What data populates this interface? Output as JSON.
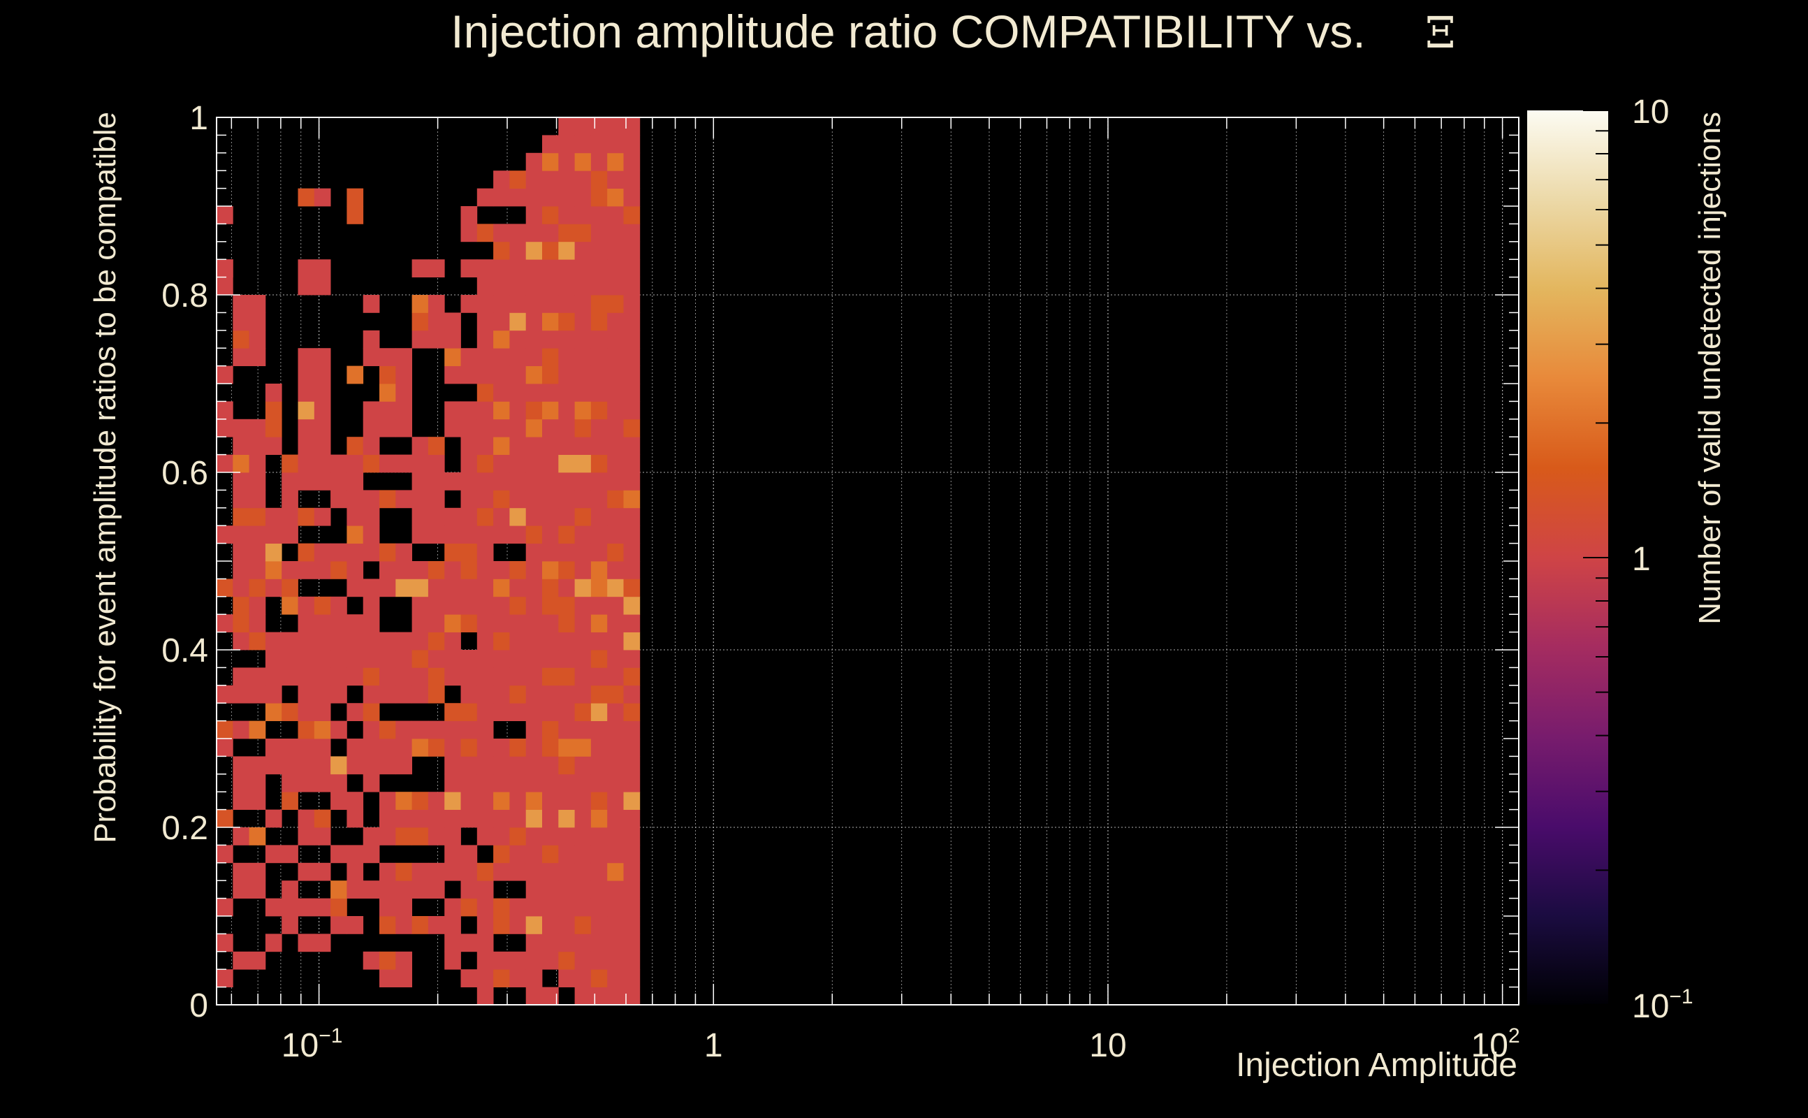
{
  "chart_data": {
    "type": "heatmap",
    "title": "Injection amplitude ratio COMPATIBILITY vs.",
    "title_symbol": "Ξ",
    "xlabel": "Injection Amplitude",
    "ylabel": "Probability for event amplitude ratios to be compatible",
    "zlabel": "Number of valid undetected injections",
    "x_scale": "log",
    "xlim": [
      0.055,
      110
    ],
    "ylim": [
      0,
      1
    ],
    "zlim": [
      0.1,
      10
    ],
    "z_scale": "log",
    "x_bins": 80,
    "y_bins": 50,
    "x_ticks": [
      {
        "value": 0.1,
        "base": "10",
        "exp": "−1"
      },
      {
        "value": 1,
        "base": "1",
        "exp": ""
      },
      {
        "value": 10,
        "base": "10",
        "exp": ""
      },
      {
        "value": 100,
        "base": "10",
        "exp": "2"
      }
    ],
    "y_ticks": [
      "0",
      "0.2",
      "0.4",
      "0.6",
      "0.8",
      "1"
    ],
    "colorbar_ticks": [
      {
        "value": 10,
        "base": "10",
        "exp": ""
      },
      {
        "value": 1,
        "base": "1",
        "exp": ""
      },
      {
        "value": 0.1,
        "base": "10",
        "exp": "−1"
      }
    ],
    "colormap": [
      "#000004",
      "#1b0c41",
      "#4a0c6b",
      "#781c6d",
      "#a52c60",
      "#cf4446",
      "#d85a1a",
      "#e8893a",
      "#e3b65e",
      "#ecd9a8",
      "#fcfbf2"
    ],
    "counts_by_x_bin": {
      "0": [
        1,
        3,
        5,
        8,
        10,
        14,
        15,
        17,
        21,
        23,
        26,
        30,
        32,
        33,
        35,
        40,
        41,
        44,
        41
      ],
      "1": [
        2,
        6,
        7,
        9,
        11,
        12,
        13,
        15,
        17,
        18,
        20,
        21,
        22,
        23,
        24,
        25,
        26,
        27,
        28,
        29,
        30,
        31,
        32,
        36,
        37,
        38,
        39
      ],
      "2": [
        2,
        6,
        7,
        9,
        11,
        12,
        13,
        15,
        17,
        18,
        20,
        21,
        22,
        23,
        24,
        25,
        26,
        27,
        28,
        29,
        30,
        31,
        32,
        36,
        37,
        38,
        39
      ],
      "3": [
        3,
        5,
        8,
        10,
        13,
        14,
        16,
        17,
        18,
        19,
        20,
        23,
        24,
        25,
        26,
        27,
        31,
        32,
        33,
        34
      ],
      "4": [
        4,
        5,
        6,
        8,
        11,
        12,
        13,
        14,
        16,
        18,
        19,
        20,
        22,
        23,
        24,
        26,
        27,
        28,
        29,
        30
      ],
      "5": [
        3,
        5,
        7,
        9,
        10,
        12,
        13,
        14,
        15,
        16,
        17,
        18,
        19,
        20,
        21,
        22,
        24,
        25,
        27,
        29,
        30,
        31,
        32,
        33,
        34,
        35,
        36,
        40,
        41,
        45
      ],
      "6": [
        3,
        5,
        7,
        9,
        10,
        12,
        13,
        14,
        15,
        16,
        17,
        18,
        19,
        20,
        21,
        22,
        24,
        25,
        27,
        29,
        30,
        31,
        32,
        33,
        34,
        35,
        36,
        40,
        41,
        45
      ],
      "7": [
        4,
        5,
        6,
        8,
        11,
        12,
        13,
        15,
        17,
        18,
        19,
        20,
        21,
        22,
        24,
        25,
        28,
        29,
        30
      ],
      "8": [
        4,
        6,
        7,
        8,
        10,
        11,
        13,
        14,
        16,
        18,
        19,
        20,
        21,
        23,
        24,
        25,
        26,
        27,
        28,
        29,
        30,
        31,
        35,
        44,
        45
      ],
      "9": [
        2,
        6,
        8,
        9,
        12,
        13,
        14,
        15,
        16,
        17,
        18,
        19,
        20,
        21,
        22,
        23,
        25,
        26,
        27,
        28,
        30,
        31,
        32,
        33,
        36,
        37,
        39
      ],
      "10": [
        1,
        2,
        4,
        5,
        6,
        7,
        9,
        10,
        11,
        13,
        14,
        15,
        17,
        18,
        19,
        20,
        23,
        24,
        25,
        28,
        30,
        32,
        33,
        34,
        35,
        36
      ],
      "11": [
        1,
        2,
        4,
        5,
        6,
        7,
        9,
        10,
        11,
        13,
        14,
        15,
        17,
        18,
        19,
        20,
        23,
        24,
        25,
        28,
        30,
        32,
        33,
        34,
        35,
        36
      ],
      "12": [
        4,
        6,
        7,
        9,
        10,
        11,
        14,
        15,
        17,
        18,
        19,
        20,
        21,
        22,
        23,
        24,
        26,
        27,
        28,
        29,
        30,
        31,
        37,
        38,
        39,
        41
      ],
      "13": [
        4,
        6,
        7,
        9,
        10,
        11,
        14,
        15,
        17,
        18,
        19,
        20,
        21,
        22,
        23,
        24,
        26,
        27,
        28,
        29,
        30,
        31,
        37,
        38,
        39,
        41
      ],
      "14": [
        2,
        3,
        4,
        5,
        7,
        8,
        9,
        10,
        11,
        12,
        13,
        14,
        15,
        16,
        18,
        19,
        20,
        21,
        22,
        23,
        24,
        25,
        26,
        27,
        29,
        32,
        33,
        35,
        36,
        37,
        38
      ],
      "15": [
        1,
        3,
        5,
        6,
        7,
        8,
        10,
        11,
        12,
        13,
        14,
        15,
        16,
        17,
        18,
        19,
        21,
        22,
        23,
        24,
        25,
        26,
        27,
        28,
        29,
        30,
        31,
        32,
        33,
        35,
        36,
        39,
        41,
        43,
        44
      ],
      "16": [
        0,
        1,
        2,
        3,
        4,
        5,
        6,
        7,
        9,
        10,
        11,
        12,
        13,
        14,
        15,
        16,
        17,
        18,
        19,
        20,
        21,
        22,
        23,
        24,
        25,
        26,
        27,
        28,
        29,
        30,
        31,
        32,
        33,
        34,
        35,
        36,
        37,
        38,
        39,
        40,
        41,
        43,
        45
      ],
      "17": [
        1,
        2,
        4,
        5,
        7,
        8,
        9,
        10,
        11,
        12,
        13,
        14,
        16,
        17,
        18,
        19,
        20,
        21,
        22,
        23,
        24,
        26,
        27,
        28,
        29,
        30,
        31,
        32,
        33,
        34,
        35,
        36,
        37,
        38,
        39,
        40,
        41,
        42,
        43,
        45,
        46
      ],
      "18": [
        1,
        2,
        4,
        5,
        7,
        8,
        9,
        10,
        11,
        12,
        13,
        14,
        16,
        17,
        18,
        19,
        20,
        21,
        22,
        23,
        24,
        26,
        27,
        28,
        29,
        30,
        31,
        32,
        33,
        34,
        35,
        36,
        37,
        38,
        39,
        40,
        41,
        42,
        43,
        45,
        46
      ],
      "19": [
        0,
        1,
        2,
        3,
        4,
        5,
        6,
        7,
        8,
        9,
        10,
        11,
        12,
        13,
        14,
        15,
        16,
        17,
        18,
        19,
        20,
        21,
        22,
        23,
        24,
        25,
        26,
        27,
        28,
        29,
        30,
        31,
        32,
        33,
        34,
        35,
        36,
        37,
        38,
        39,
        40,
        41,
        42,
        43,
        44,
        45,
        46,
        47
      ],
      "20": [
        0,
        2,
        3,
        4,
        5,
        6,
        7,
        8,
        9,
        10,
        11,
        12,
        13,
        14,
        15,
        16,
        17,
        18,
        19,
        20,
        21,
        22,
        23,
        24,
        25,
        26,
        27,
        28,
        29,
        30,
        31,
        32,
        33,
        34,
        35,
        36,
        37,
        38,
        39,
        40,
        41,
        42,
        43,
        44,
        45,
        46,
        47,
        48
      ],
      "21": [
        1,
        2,
        3,
        4,
        5,
        6,
        7,
        8,
        9,
        10,
        11,
        12,
        13,
        14,
        15,
        16,
        17,
        18,
        19,
        20,
        21,
        22,
        23,
        24,
        25,
        26,
        27,
        28,
        29,
        30,
        31,
        32,
        33,
        34,
        35,
        36,
        37,
        38,
        39,
        40,
        41,
        42,
        43,
        44,
        45,
        46,
        47,
        48,
        49
      ],
      "22": [
        0,
        1,
        2,
        3,
        4,
        5,
        6,
        7,
        8,
        9,
        10,
        11,
        12,
        13,
        14,
        15,
        16,
        17,
        18,
        19,
        20,
        21,
        22,
        23,
        24,
        25,
        26,
        27,
        28,
        29,
        30,
        31,
        32,
        33,
        34,
        35,
        36,
        37,
        38,
        39,
        40,
        41,
        42,
        43,
        44,
        45,
        46,
        47,
        48,
        49
      ],
      "23": [
        0,
        1,
        2,
        3,
        4,
        5,
        6,
        7,
        8,
        9,
        10,
        11,
        12,
        13,
        14,
        15,
        16,
        17,
        18,
        19,
        20,
        21,
        22,
        23,
        24,
        25,
        26,
        27,
        28,
        29,
        30,
        31,
        32,
        33,
        34,
        35,
        36,
        37,
        38,
        39,
        40,
        41,
        42,
        43,
        44,
        45,
        46,
        47,
        48,
        49
      ],
      "24": [
        0,
        1,
        2,
        3,
        4,
        5,
        6,
        7,
        8,
        9,
        10,
        11,
        12,
        13,
        14,
        15,
        16,
        17,
        18,
        19,
        20,
        21,
        22,
        23,
        24,
        25,
        26,
        27,
        28,
        29,
        30,
        31,
        32,
        33,
        34,
        35,
        36,
        37,
        38,
        39,
        40,
        41,
        42,
        43,
        44,
        45,
        46,
        47,
        48,
        49
      ],
      "25": [
        0,
        1,
        2,
        3,
        4,
        5,
        6,
        7,
        8,
        9,
        10,
        11,
        12,
        13,
        14,
        15,
        16,
        17,
        18,
        19,
        20,
        21,
        22,
        23,
        24,
        25,
        26,
        27,
        28,
        29,
        30,
        31,
        32,
        33,
        34,
        35,
        36,
        37,
        38,
        39,
        40,
        41,
        42,
        43,
        44,
        45,
        46,
        47,
        48,
        49
      ]
    }
  }
}
